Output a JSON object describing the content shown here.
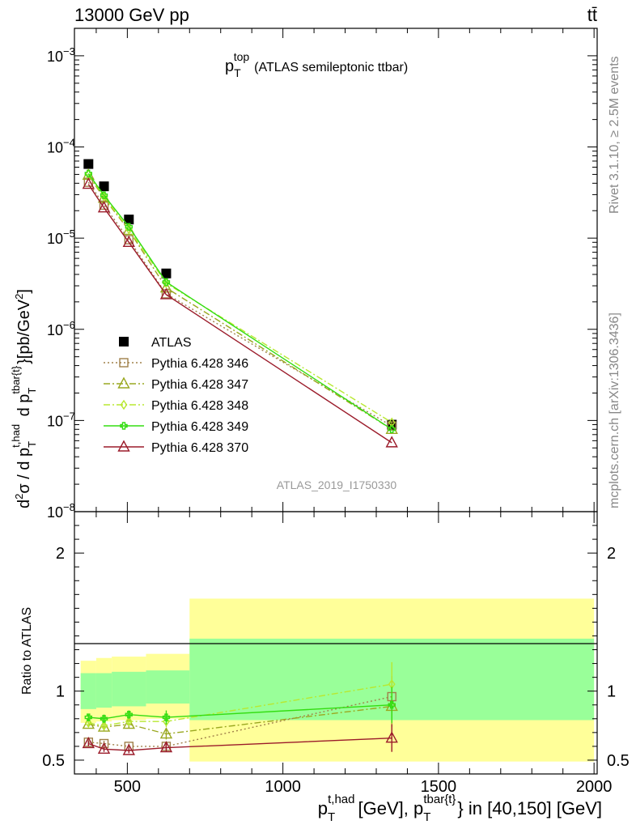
{
  "header": {
    "energy_label": "13000 GeV pp",
    "process_label": "tt̄",
    "side_label_top": "Rivet 3.1.10, ≥ 2.5M events",
    "side_label_bottom": "mcplots.cern.ch [arXiv:1306.3436]",
    "analysis_id": "ATLAS_2019_I1750330"
  },
  "chart_data": [
    {
      "panel": "main",
      "type": "line",
      "title_main": "p",
      "title_sub": "T",
      "title_sup": "top",
      "title_rest": "(ATLAS semileptonic ttbar)",
      "ylabel": "d²σ / d p_T^{t,had} d p_T^{tbar{t}} [pb/GeV²]",
      "yscale": "log",
      "ylim": [
        1e-08,
        0.002
      ],
      "xlim": [
        330,
        2010
      ],
      "ytick_labels": [
        {
          "base": "10",
          "exp": "−3",
          "value": 0.001
        },
        {
          "base": "10",
          "exp": "−4",
          "value": 0.0001
        },
        {
          "base": "10",
          "exp": "−5",
          "value": 1e-05
        },
        {
          "base": "10",
          "exp": "−6",
          "value": 1e-06
        },
        {
          "base": "10",
          "exp": "−7",
          "value": 1e-07
        },
        {
          "base": "10",
          "exp": "−8",
          "value": 1e-08
        }
      ],
      "x": [
        375,
        425,
        505,
        625,
        1350
      ],
      "series": [
        {
          "name": "ATLAS",
          "color": "#000000",
          "marker": "square-filled",
          "dash": "none",
          "values": [
            6.5e-05,
            3.7e-05,
            1.6e-05,
            4.1e-06,
            9e-08
          ]
        },
        {
          "name": "Pythia 6.428 346",
          "color": "#a0804a",
          "marker": "square-open",
          "dash": "dot",
          "values": [
            4.1e-05,
            2.3e-05,
            9.6e-06,
            2.45e-06,
            8.7e-08
          ]
        },
        {
          "name": "Pythia 6.428 347",
          "color": "#9aa820",
          "marker": "triangle-open",
          "dash": "dashdot",
          "values": [
            4.9e-05,
            2.75e-05,
            1.22e-05,
            2.85e-06,
            8e-08
          ]
        },
        {
          "name": "Pythia 6.428 348",
          "color": "#b8e830",
          "marker": "diamond-open",
          "dash": "dashdot",
          "values": [
            5e-05,
            2.85e-05,
            1.25e-05,
            3.2e-06,
            9.5e-08
          ]
        },
        {
          "name": "Pythia 6.428 349",
          "color": "#33dd11",
          "marker": "cross",
          "dash": "none",
          "values": [
            5.1e-05,
            2.95e-05,
            1.33e-05,
            3.3e-06,
            8e-08
          ]
        },
        {
          "name": "Pythia 6.428 370",
          "color": "#9b1b2a",
          "marker": "triangle-open",
          "dash": "none",
          "values": [
            3.9e-05,
            2.15e-05,
            9e-06,
            2.4e-06,
            5.7e-08
          ]
        }
      ]
    },
    {
      "panel": "ratio",
      "type": "line",
      "ylabel": "Ratio to ATLAS",
      "ylim": [
        0.4,
        2.3
      ],
      "xlim": [
        330,
        2010
      ],
      "yticks": [
        0.5,
        1,
        2
      ],
      "ytick_labels": [
        "0.5",
        "1",
        "2"
      ],
      "xticks": [
        500,
        1000,
        1500,
        2000
      ],
      "xtick_labels": [
        "500",
        "1000",
        "1500",
        "2000"
      ],
      "xlabel_main": "p",
      "xlabel_sub": "T",
      "xlabel_sup": "t,had",
      "xlabel_mid": "[GeV], p",
      "xlabel_sub2": "T",
      "xlabel_sup2": "tbar{t}",
      "xlabel_rest": "} in [40,150] [GeV]",
      "bands": [
        {
          "x0": 350,
          "x1": 400,
          "inner": [
            0.87,
            1.13
          ],
          "outer": [
            0.77,
            1.22
          ]
        },
        {
          "x0": 400,
          "x1": 450,
          "inner": [
            0.88,
            1.13
          ],
          "outer": [
            0.78,
            1.24
          ]
        },
        {
          "x0": 450,
          "x1": 560,
          "inner": [
            0.89,
            1.14
          ],
          "outer": [
            0.79,
            1.25
          ]
        },
        {
          "x0": 560,
          "x1": 700,
          "inner": [
            0.91,
            1.15
          ],
          "outer": [
            0.8,
            1.27
          ]
        },
        {
          "x0": 700,
          "x1": 2000,
          "inner": [
            0.79,
            1.38
          ],
          "outer": [
            0.49,
            1.67
          ]
        }
      ],
      "x": [
        375,
        425,
        505,
        625,
        1350
      ],
      "series": [
        {
          "name": "Pythia 6.428 346",
          "color": "#a0804a",
          "marker": "square-open",
          "dash": "dot",
          "values": [
            0.63,
            0.62,
            0.6,
            0.6,
            0.96
          ],
          "err": [
            0.02,
            0.02,
            0.02,
            0.03,
            0.15
          ]
        },
        {
          "name": "Pythia 6.428 347",
          "color": "#9aa820",
          "marker": "triangle-open",
          "dash": "dashdot",
          "values": [
            0.76,
            0.74,
            0.76,
            0.69,
            0.89
          ],
          "err": [
            0.02,
            0.03,
            0.03,
            0.04,
            0.15
          ]
        },
        {
          "name": "Pythia 6.428 348",
          "color": "#b8e830",
          "marker": "diamond-open",
          "dash": "dashdot",
          "values": [
            0.77,
            0.75,
            0.78,
            0.78,
            1.05
          ],
          "err": [
            0.02,
            0.03,
            0.03,
            0.04,
            0.16
          ]
        },
        {
          "name": "Pythia 6.428 349",
          "color": "#33dd11",
          "marker": "cross",
          "dash": "none",
          "values": [
            0.81,
            0.8,
            0.83,
            0.81,
            0.9
          ],
          "err": [
            0.02,
            0.03,
            0.03,
            0.05,
            0.13
          ]
        },
        {
          "name": "Pythia 6.428 370",
          "color": "#9b1b2a",
          "marker": "triangle-open",
          "dash": "none",
          "values": [
            0.62,
            0.58,
            0.57,
            0.59,
            0.66
          ],
          "err": [
            0.02,
            0.02,
            0.02,
            0.03,
            0.1
          ]
        }
      ]
    }
  ]
}
